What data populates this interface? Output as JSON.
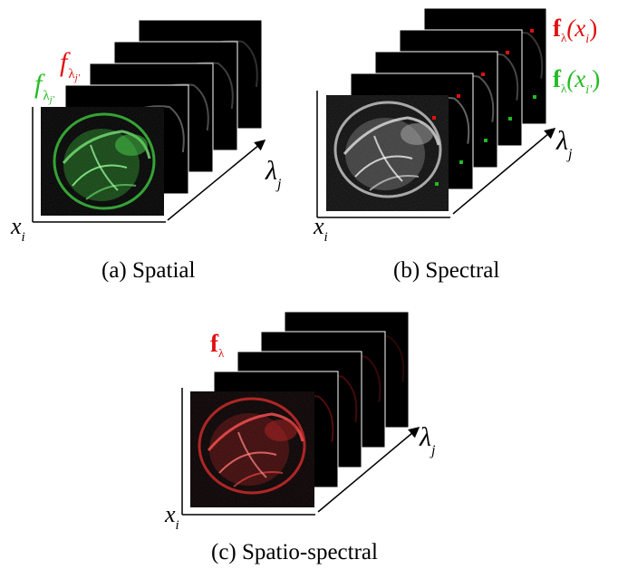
{
  "panels": {
    "spatial": {
      "caption": "(a) Spatial",
      "label_x_var": "x",
      "label_x_sub": "i",
      "label_lambda": "λ",
      "label_lambda_sub": "j",
      "label_f_red": "f",
      "label_f_red_sub": "λ",
      "label_f_red_subsub": "j'",
      "label_f_green": "f",
      "label_f_green_sub": "λ",
      "label_f_green_subsub": "j'",
      "front_tint": "#2fb82f"
    },
    "spectral": {
      "caption": "(b) Spectral",
      "label_x_var": "x",
      "label_x_sub": "i",
      "label_lambda": "λ",
      "label_lambda_sub": "j",
      "label_f_red_bold": "f",
      "label_f_red_sub": "λ",
      "label_f_red_arg": "(x",
      "label_f_red_arg_sub": "i",
      "label_f_red_close": ")",
      "label_f_green_bold": "f",
      "label_f_green_sub": "λ",
      "label_f_green_arg": "(x",
      "label_f_green_arg_sub": "i'",
      "label_f_green_close": ")",
      "front_tint": "#c8c8c8"
    },
    "spatiospectral": {
      "caption": "(c) Spatio-spectral",
      "label_x_var": "x",
      "label_x_sub": "i",
      "label_lambda": "λ",
      "label_lambda_sub": "j",
      "label_f_bold": "f",
      "label_f_sub": "λ",
      "front_tint": "#c81e1e"
    }
  },
  "colors": {
    "red": "#e01010",
    "green": "#22bb22",
    "axis": "#000000",
    "slice": "#000000"
  }
}
